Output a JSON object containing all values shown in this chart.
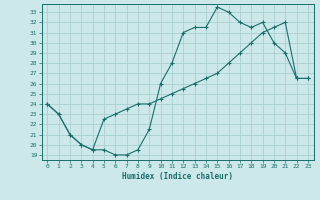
{
  "title": "",
  "xlabel": "Humidex (Indice chaleur)",
  "bg_color": "#cce8ea",
  "grid_color": "#aacfd2",
  "line_color": "#1a6e6a",
  "xlim": [
    -0.5,
    23.5
  ],
  "ylim": [
    18.5,
    33.8
  ],
  "xticks": [
    0,
    1,
    2,
    3,
    4,
    5,
    6,
    7,
    8,
    9,
    10,
    11,
    12,
    13,
    14,
    15,
    16,
    17,
    18,
    19,
    20,
    21,
    22,
    23
  ],
  "yticks": [
    19,
    20,
    21,
    22,
    23,
    24,
    25,
    26,
    27,
    28,
    29,
    30,
    31,
    32,
    33
  ],
  "line1_x": [
    0,
    1,
    2,
    3,
    4,
    5,
    6,
    7,
    8,
    9,
    10,
    11,
    12,
    13,
    14,
    15,
    16,
    17,
    18,
    19,
    20,
    21,
    22,
    23
  ],
  "line1_y": [
    24,
    23,
    21,
    20,
    19.5,
    19.5,
    19,
    19,
    19.5,
    21.5,
    26,
    28,
    31,
    31.5,
    31.5,
    33.5,
    33,
    32,
    31.5,
    32,
    30,
    29,
    26.5,
    26.5
  ],
  "line2_x": [
    0,
    1,
    2,
    3,
    4,
    5,
    6,
    7,
    8,
    9,
    10,
    11,
    12,
    13,
    14,
    15,
    16,
    17,
    18,
    19,
    20,
    21,
    22,
    23
  ],
  "line2_y": [
    24,
    23,
    21,
    20,
    19.5,
    22.5,
    23,
    23.5,
    24,
    24,
    24.5,
    25,
    25.5,
    26,
    26.5,
    27,
    28,
    29,
    30,
    31,
    31.5,
    32,
    26.5,
    26.5
  ]
}
